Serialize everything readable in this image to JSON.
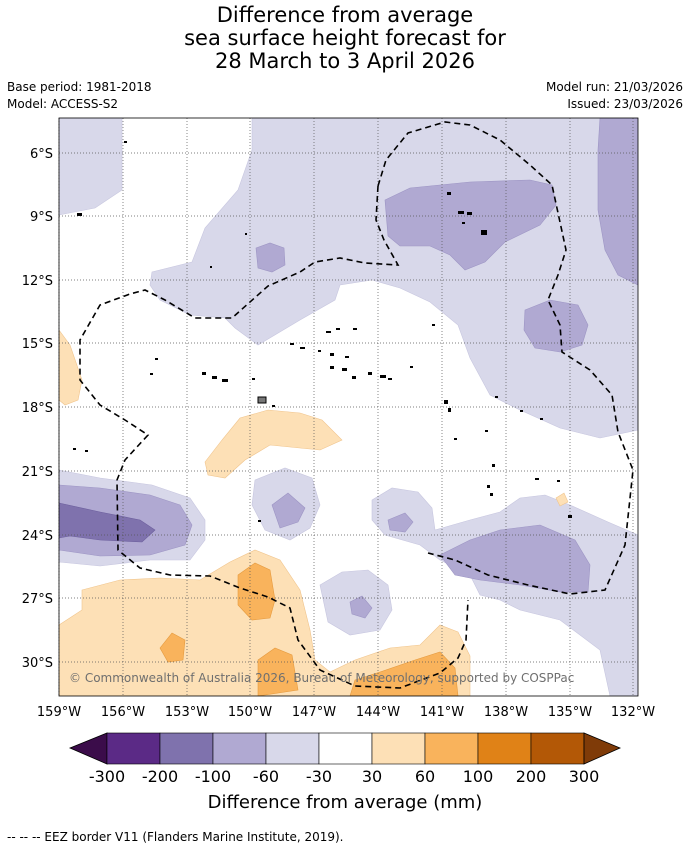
{
  "title": {
    "line1": "Difference from average",
    "line2": "sea surface height forecast for",
    "line3": "28 March to 3 April 2026"
  },
  "meta": {
    "base_period": "Base period: 1981-2018",
    "model": "Model: ACCESS-S2",
    "model_run": "Model run: 21/03/2026",
    "issued": "Issued: 23/03/2026"
  },
  "map": {
    "lon_labels": [
      "159°W",
      "156°W",
      "153°W",
      "150°W",
      "147°W",
      "144°W",
      "141°W",
      "138°W",
      "135°W",
      "132°W"
    ],
    "lat_labels": [
      "6°S",
      "9°S",
      "12°S",
      "15°S",
      "18°S",
      "21°S",
      "24°S",
      "27°S",
      "30°S"
    ],
    "copyright": "© Commonwealth of Australia 2026, Bureau of Meteorology, supported by COSPPac"
  },
  "colorbar": {
    "tick_labels": [
      "-300",
      "-200",
      "-100",
      "-60",
      "-30",
      "30",
      "60",
      "100",
      "200",
      "300"
    ],
    "colors": [
      "#3b0c4a",
      "#5b2a86",
      "#7f72ad",
      "#b0a9d2",
      "#d8d8ea",
      "#ffffff",
      "#fde0b6",
      "#f9b35c",
      "#e08217",
      "#b35806",
      "#7f3b08"
    ],
    "title": "Difference from average (mm)"
  },
  "legend": {
    "eez": "--  --  -- EEZ border V11 (Flanders Marine Institute, 2019)."
  }
}
